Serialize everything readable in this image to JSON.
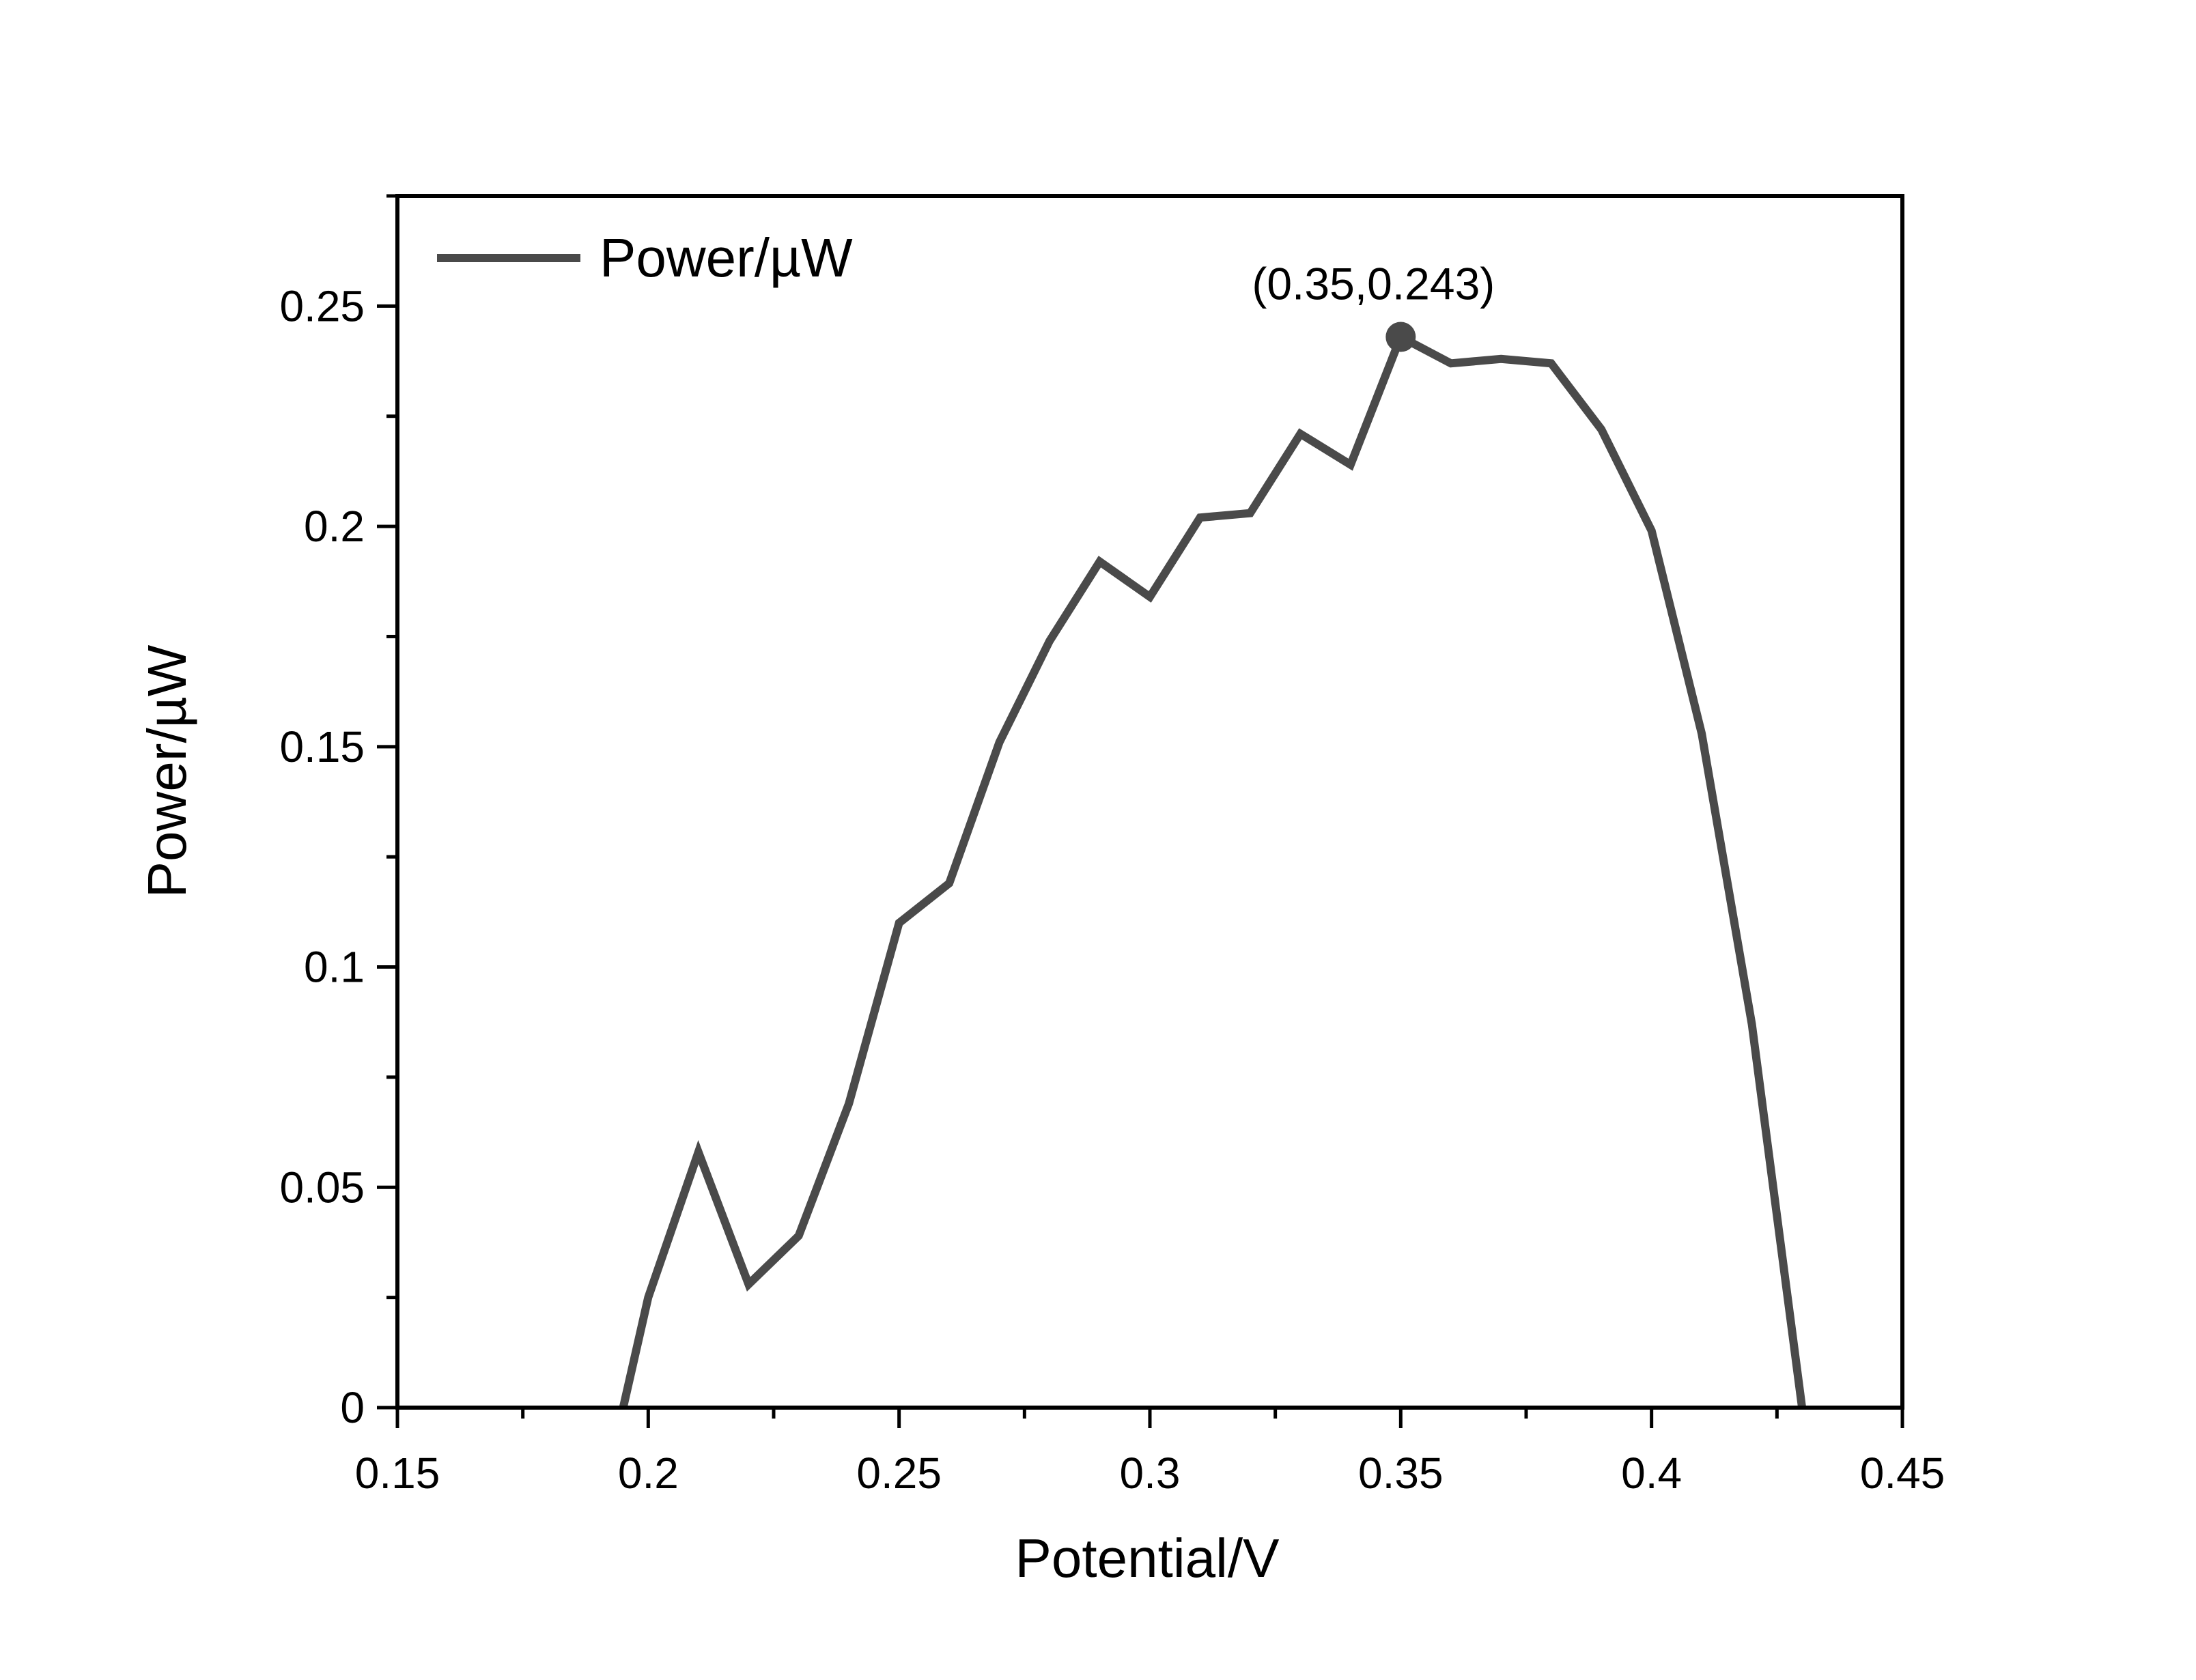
{
  "chart_data": {
    "type": "line",
    "xlabel": "Potential/V",
    "ylabel": "Power/µW",
    "xlim": [
      0.15,
      0.45
    ],
    "ylim": [
      0,
      0.275
    ],
    "x_ticks": [
      0.15,
      0.2,
      0.25,
      0.3,
      0.35,
      0.4,
      0.45
    ],
    "x_tick_labels": [
      "0.15",
      "0.2",
      "0.25",
      "0.3",
      "0.35",
      "0.4",
      "0.45"
    ],
    "y_ticks": [
      0,
      0.05,
      0.1,
      0.15,
      0.2,
      0.25
    ],
    "y_tick_labels": [
      "0",
      "0.05",
      "0.1",
      "0.15",
      "0.2",
      "0.25"
    ],
    "grid": false,
    "legend_position": "top-left",
    "series": [
      {
        "name": "Power/µW",
        "color": "#4a4a4a",
        "x": [
          0.195,
          0.2,
          0.21,
          0.22,
          0.23,
          0.24,
          0.25,
          0.26,
          0.27,
          0.28,
          0.29,
          0.3,
          0.31,
          0.32,
          0.33,
          0.34,
          0.35,
          0.36,
          0.37,
          0.38,
          0.39,
          0.4,
          0.41,
          0.42,
          0.43
        ],
        "y": [
          0,
          0.025,
          0.058,
          0.028,
          0.039,
          0.069,
          0.11,
          0.119,
          0.151,
          0.174,
          0.192,
          0.184,
          0.202,
          0.203,
          0.221,
          0.214,
          0.243,
          0.237,
          0.238,
          0.237,
          0.222,
          0.199,
          0.153,
          0.087,
          0
        ]
      }
    ],
    "annotations": [
      {
        "x": 0.35,
        "y": 0.243,
        "text": "(0.35,0.243)"
      }
    ]
  }
}
